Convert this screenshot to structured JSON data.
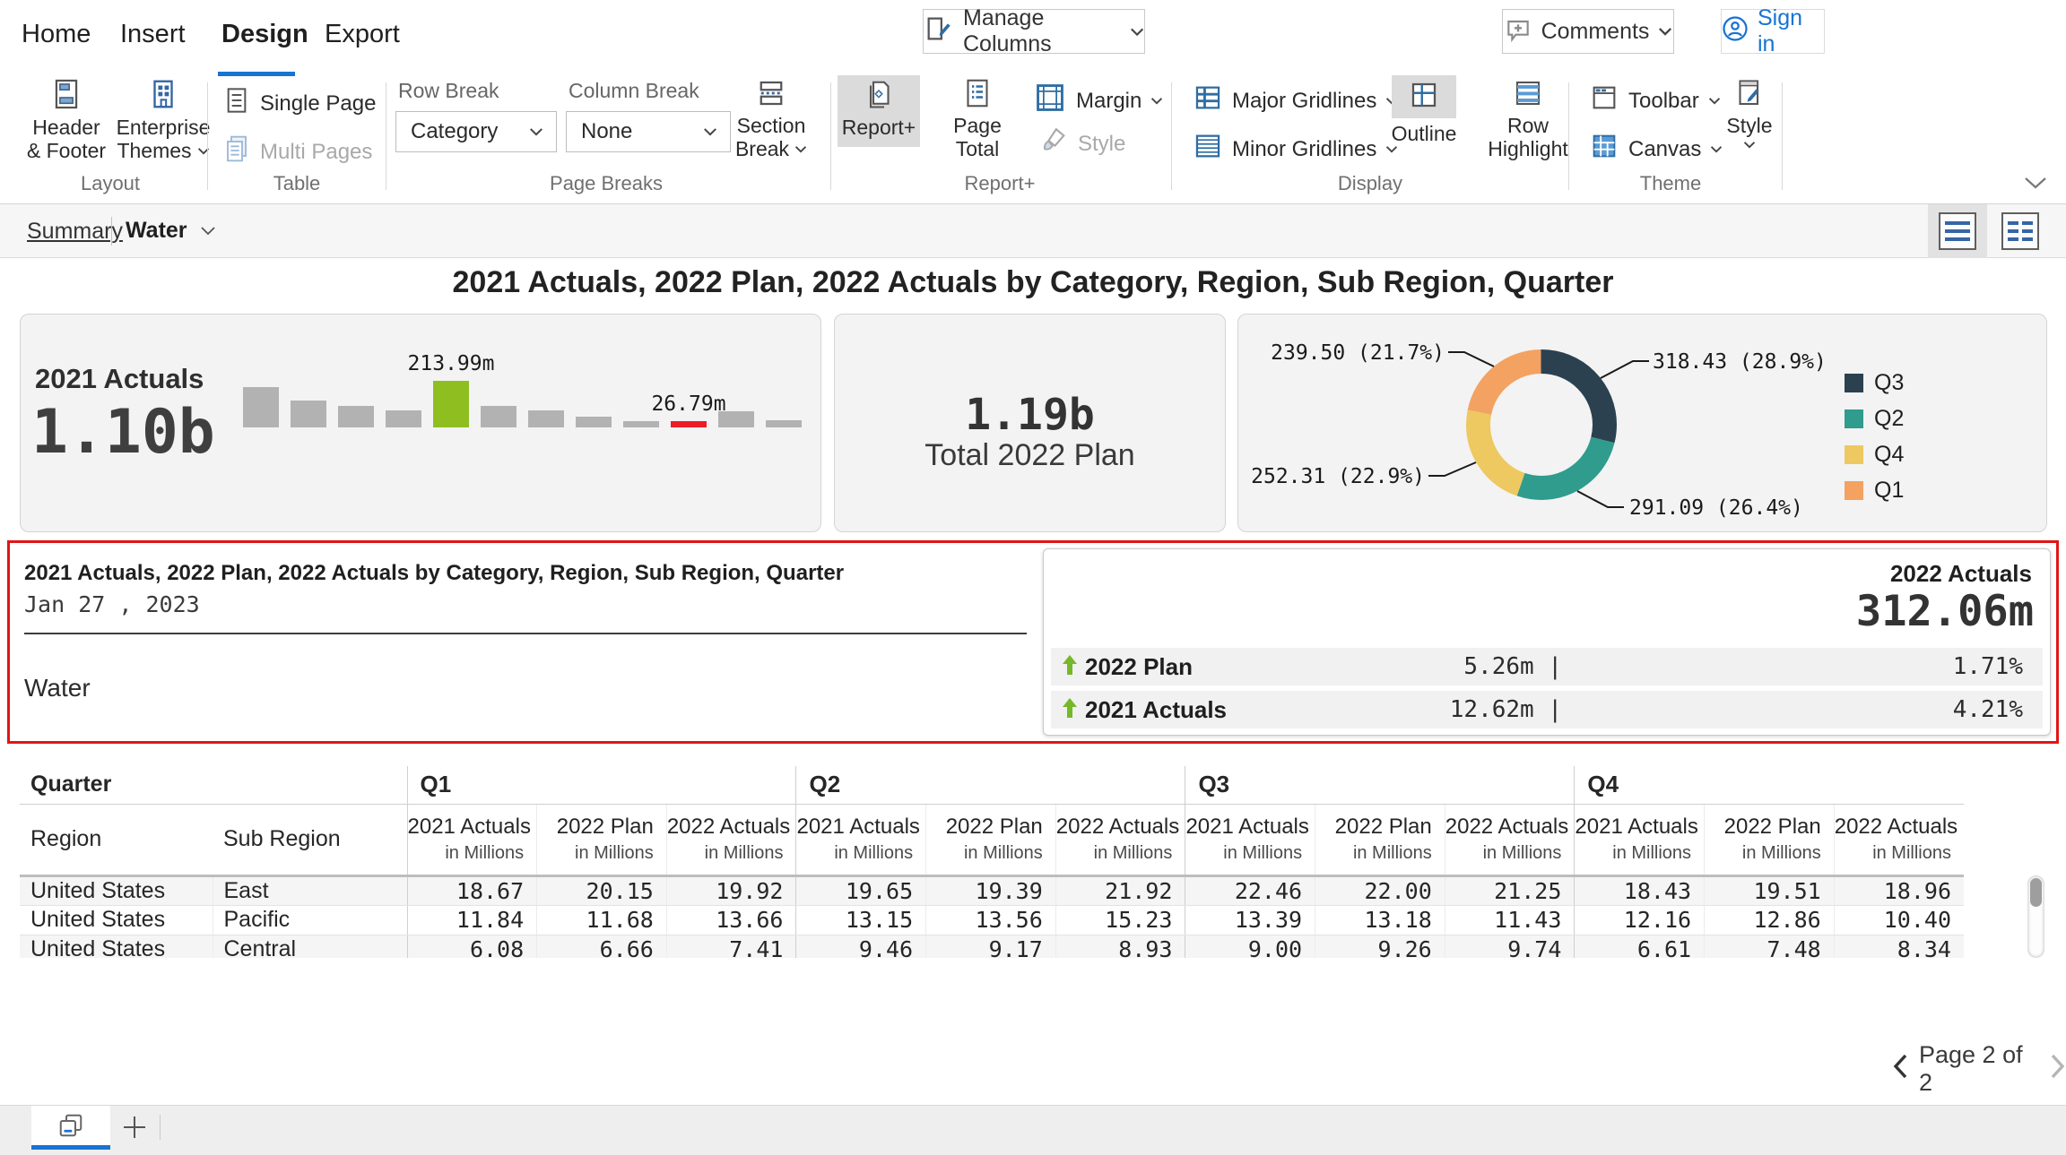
{
  "colors": {
    "accent_blue": "#1873d3",
    "icon_blue": "#3565a5",
    "bar_gray": "#b2b2b2",
    "bar_green": "#8fbe21",
    "bar_red": "#ee1c25",
    "positive_green": "#76b82a",
    "section_border_red": "#e01616",
    "selected_button_gray": "#dbdbdb"
  },
  "menu": {
    "tabs": [
      "Home",
      "Insert",
      "Design",
      "Export"
    ],
    "active_tab": "Design"
  },
  "topbar": {
    "manage_columns": "Manage Columns",
    "comments": "Comments",
    "sign_in": "Sign in"
  },
  "ribbon": {
    "header_footer_1": "Header",
    "header_footer_2": "& Footer",
    "enterprise_1": "Enterprise",
    "enterprise_2": "Themes",
    "single_page": "Single Page",
    "multi_pages": "Multi Pages",
    "row_break_label": "Row Break",
    "row_break_value": "Category",
    "column_break_label": "Column Break",
    "column_break_value": "None",
    "section_break_1": "Section",
    "section_break_2": "Break",
    "report_plus": "Report+",
    "page_total": "Page Total",
    "margin": "Margin",
    "style": "Style",
    "major_gridlines": "Major Gridlines",
    "minor_gridlines": "Minor Gridlines",
    "outline": "Outline",
    "row_highlight_1": "Row",
    "row_highlight_2": "Highlight",
    "toolbar": "Toolbar",
    "canvas": "Canvas",
    "theme_style": "Style",
    "group_labels": {
      "layout": "Layout",
      "table": "Table",
      "page_breaks": "Page Breaks",
      "report_plus": "Report+",
      "display": "Display",
      "theme": "Theme"
    }
  },
  "subnav": {
    "summary_link": "Summary",
    "sheet_name": "Water"
  },
  "report": {
    "title": "2021 Actuals, 2022 Plan, 2022 Actuals by Category, Region, Sub Region, Quarter",
    "kpi_2021": {
      "label": "2021 Actuals",
      "value": "1.10b"
    },
    "kpi_plan": {
      "value": "1.19b",
      "label": "Total 2022 Plan"
    },
    "detail": {
      "title": "2021 Actuals, 2022 Plan, 2022 Actuals by Category, Region, Sub Region, Quarter",
      "date": "Jan 27 , 2023",
      "category": "Water",
      "kpi_label": "2022 Actuals",
      "kpi_value": "312.06m",
      "comparisons": [
        {
          "label": "2022 Plan",
          "value": "5.26m",
          "pct": "1.71%",
          "direction": "up"
        },
        {
          "label": "2021 Actuals",
          "value": "12.62m",
          "pct": "4.21%",
          "direction": "up"
        }
      ]
    },
    "pager": {
      "label": "Page 2 of 2"
    }
  },
  "chart_data": [
    {
      "type": "bar",
      "title": "2021 Actuals breakdown",
      "unit": "millions",
      "values": [
        185,
        123,
        99,
        78,
        213.99,
        99,
        79,
        51,
        30,
        26.79,
        74,
        33
      ],
      "bar_color": "#b2b2b2",
      "highlights": {
        "4": {
          "color": "green",
          "label": "213.99m"
        },
        "9": {
          "color": "red",
          "label": "26.79m"
        }
      },
      "total_label": "1.10b",
      "axes": "none",
      "grid": false
    },
    {
      "type": "donut",
      "title": "Quarter share",
      "legend_position": "right",
      "segments": [
        {
          "name": "Q3",
          "value": 318.43,
          "pct": 28.9,
          "color": "#2b4150"
        },
        {
          "name": "Q2",
          "value": 291.09,
          "pct": 26.4,
          "color": "#2f9c8d"
        },
        {
          "name": "Q4",
          "value": 252.31,
          "pct": 22.9,
          "color": "#eec860"
        },
        {
          "name": "Q1",
          "value": 239.5,
          "pct": 21.7,
          "color": "#f3a261"
        }
      ]
    }
  ],
  "table": {
    "corner_label": "Quarter",
    "region_header": "Region",
    "subregion_header": "Sub Region",
    "quarters": [
      "Q1",
      "Q2",
      "Q3",
      "Q4"
    ],
    "measures": [
      "2021 Actuals",
      "2022 Plan",
      "2022 Actuals"
    ],
    "unit_label": "in Millions",
    "rows": [
      {
        "region": "United States",
        "sub_region": "East",
        "cells": [
          "18.67",
          "20.15",
          "19.92",
          "19.65",
          "19.39",
          "21.92",
          "22.46",
          "22.00",
          "21.25",
          "18.43",
          "19.51",
          "18.96"
        ]
      },
      {
        "region": "United States",
        "sub_region": "Pacific",
        "cells": [
          "11.84",
          "11.68",
          "13.66",
          "13.15",
          "13.56",
          "15.23",
          "13.39",
          "13.18",
          "11.43",
          "12.16",
          "12.86",
          "10.40"
        ]
      },
      {
        "region": "United States",
        "sub_region": "Central",
        "cells": [
          "6.08",
          "6.66",
          "7.41",
          "9.46",
          "9.17",
          "8.93",
          "9.00",
          "9.26",
          "9.74",
          "6.61",
          "7.48",
          "8.34"
        ]
      }
    ]
  },
  "sheetbar": {
    "add_label": "+"
  }
}
